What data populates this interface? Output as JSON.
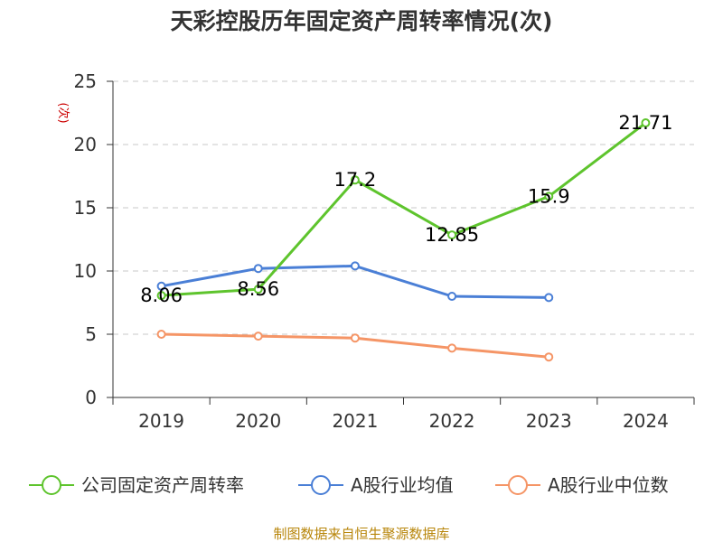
{
  "chart_data": {
    "type": "line",
    "title": "天彩控股历年固定资产周转率情况(次)",
    "ylabel": "(次)",
    "xlabel": "",
    "categories": [
      "2019",
      "2020",
      "2021",
      "2022",
      "2023",
      "2024"
    ],
    "ylim": [
      0,
      25
    ],
    "yticks": [
      0,
      5,
      10,
      15,
      20,
      25
    ],
    "grid": true,
    "legend_position": "bottom",
    "series": [
      {
        "name": "公司固定资产周转率",
        "values": [
          8.06,
          8.56,
          17.2,
          12.85,
          15.9,
          21.71
        ],
        "labels": [
          "8.06",
          "8.56",
          "17.2",
          "12.85",
          "15.9",
          "21.71"
        ],
        "color": "#5ec42d"
      },
      {
        "name": "A股行业均值",
        "values": [
          8.8,
          10.2,
          10.4,
          8.0,
          7.9,
          null
        ],
        "color": "#4a7fd6"
      },
      {
        "name": "A股行业中位数",
        "values": [
          5.0,
          4.85,
          4.7,
          3.9,
          3.2,
          null
        ],
        "color": "#f59566"
      }
    ]
  },
  "source": "制图数据来自恒生聚源数据库"
}
